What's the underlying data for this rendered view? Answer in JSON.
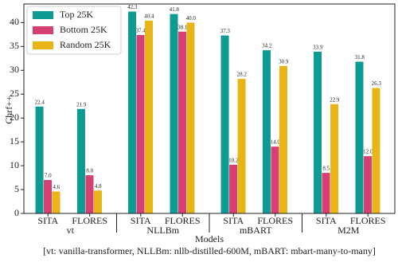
{
  "chart_data": {
    "type": "bar",
    "ylabel": "Chrf++",
    "xlabel": "Models",
    "caption": "[vt: vanilla-transformer, NLLBm: nllb-distilled-600M, mBART: mbart-many-to-many]",
    "categories": [
      "SITA",
      "FLORES",
      "SITA",
      "FLORES",
      "SITA",
      "FLORES",
      "SITA",
      "FLORES"
    ],
    "groups": [
      "vt",
      "NLLBm",
      "mBART",
      "M2M"
    ],
    "series": [
      {
        "name": "Top 25K",
        "color": "#0e9b93",
        "values": [
          22.4,
          21.9,
          42.3,
          41.8,
          37.3,
          34.2,
          33.9,
          31.8
        ],
        "value_labels": [
          "22.4",
          "21.9",
          "42.3",
          "41.8",
          "37.3",
          "34.2",
          "33.9",
          "31.8"
        ]
      },
      {
        "name": "Bottom 25K",
        "color": "#d63f74",
        "values": [
          7.0,
          8.0,
          37.4,
          38.1,
          10.2,
          14.0,
          8.5,
          12.0
        ],
        "value_labels": [
          "7.0",
          "8.0",
          "37.4",
          "38.1",
          "10.2",
          "14.0",
          "8.5",
          "12.0"
        ]
      },
      {
        "name": "Random 25K",
        "color": "#e8b416",
        "values": [
          4.6,
          4.8,
          40.4,
          40.0,
          28.2,
          30.9,
          22.9,
          26.3
        ],
        "value_labels": [
          "4.6",
          "4.8",
          "40.4",
          "40.0",
          "28.2",
          "30.9",
          "22.9",
          "26.3"
        ]
      }
    ],
    "ylim": [
      0,
      43.9
    ],
    "yticks": [
      0,
      5,
      10,
      15,
      20,
      25,
      30,
      35,
      40
    ],
    "legend": "upper left"
  }
}
